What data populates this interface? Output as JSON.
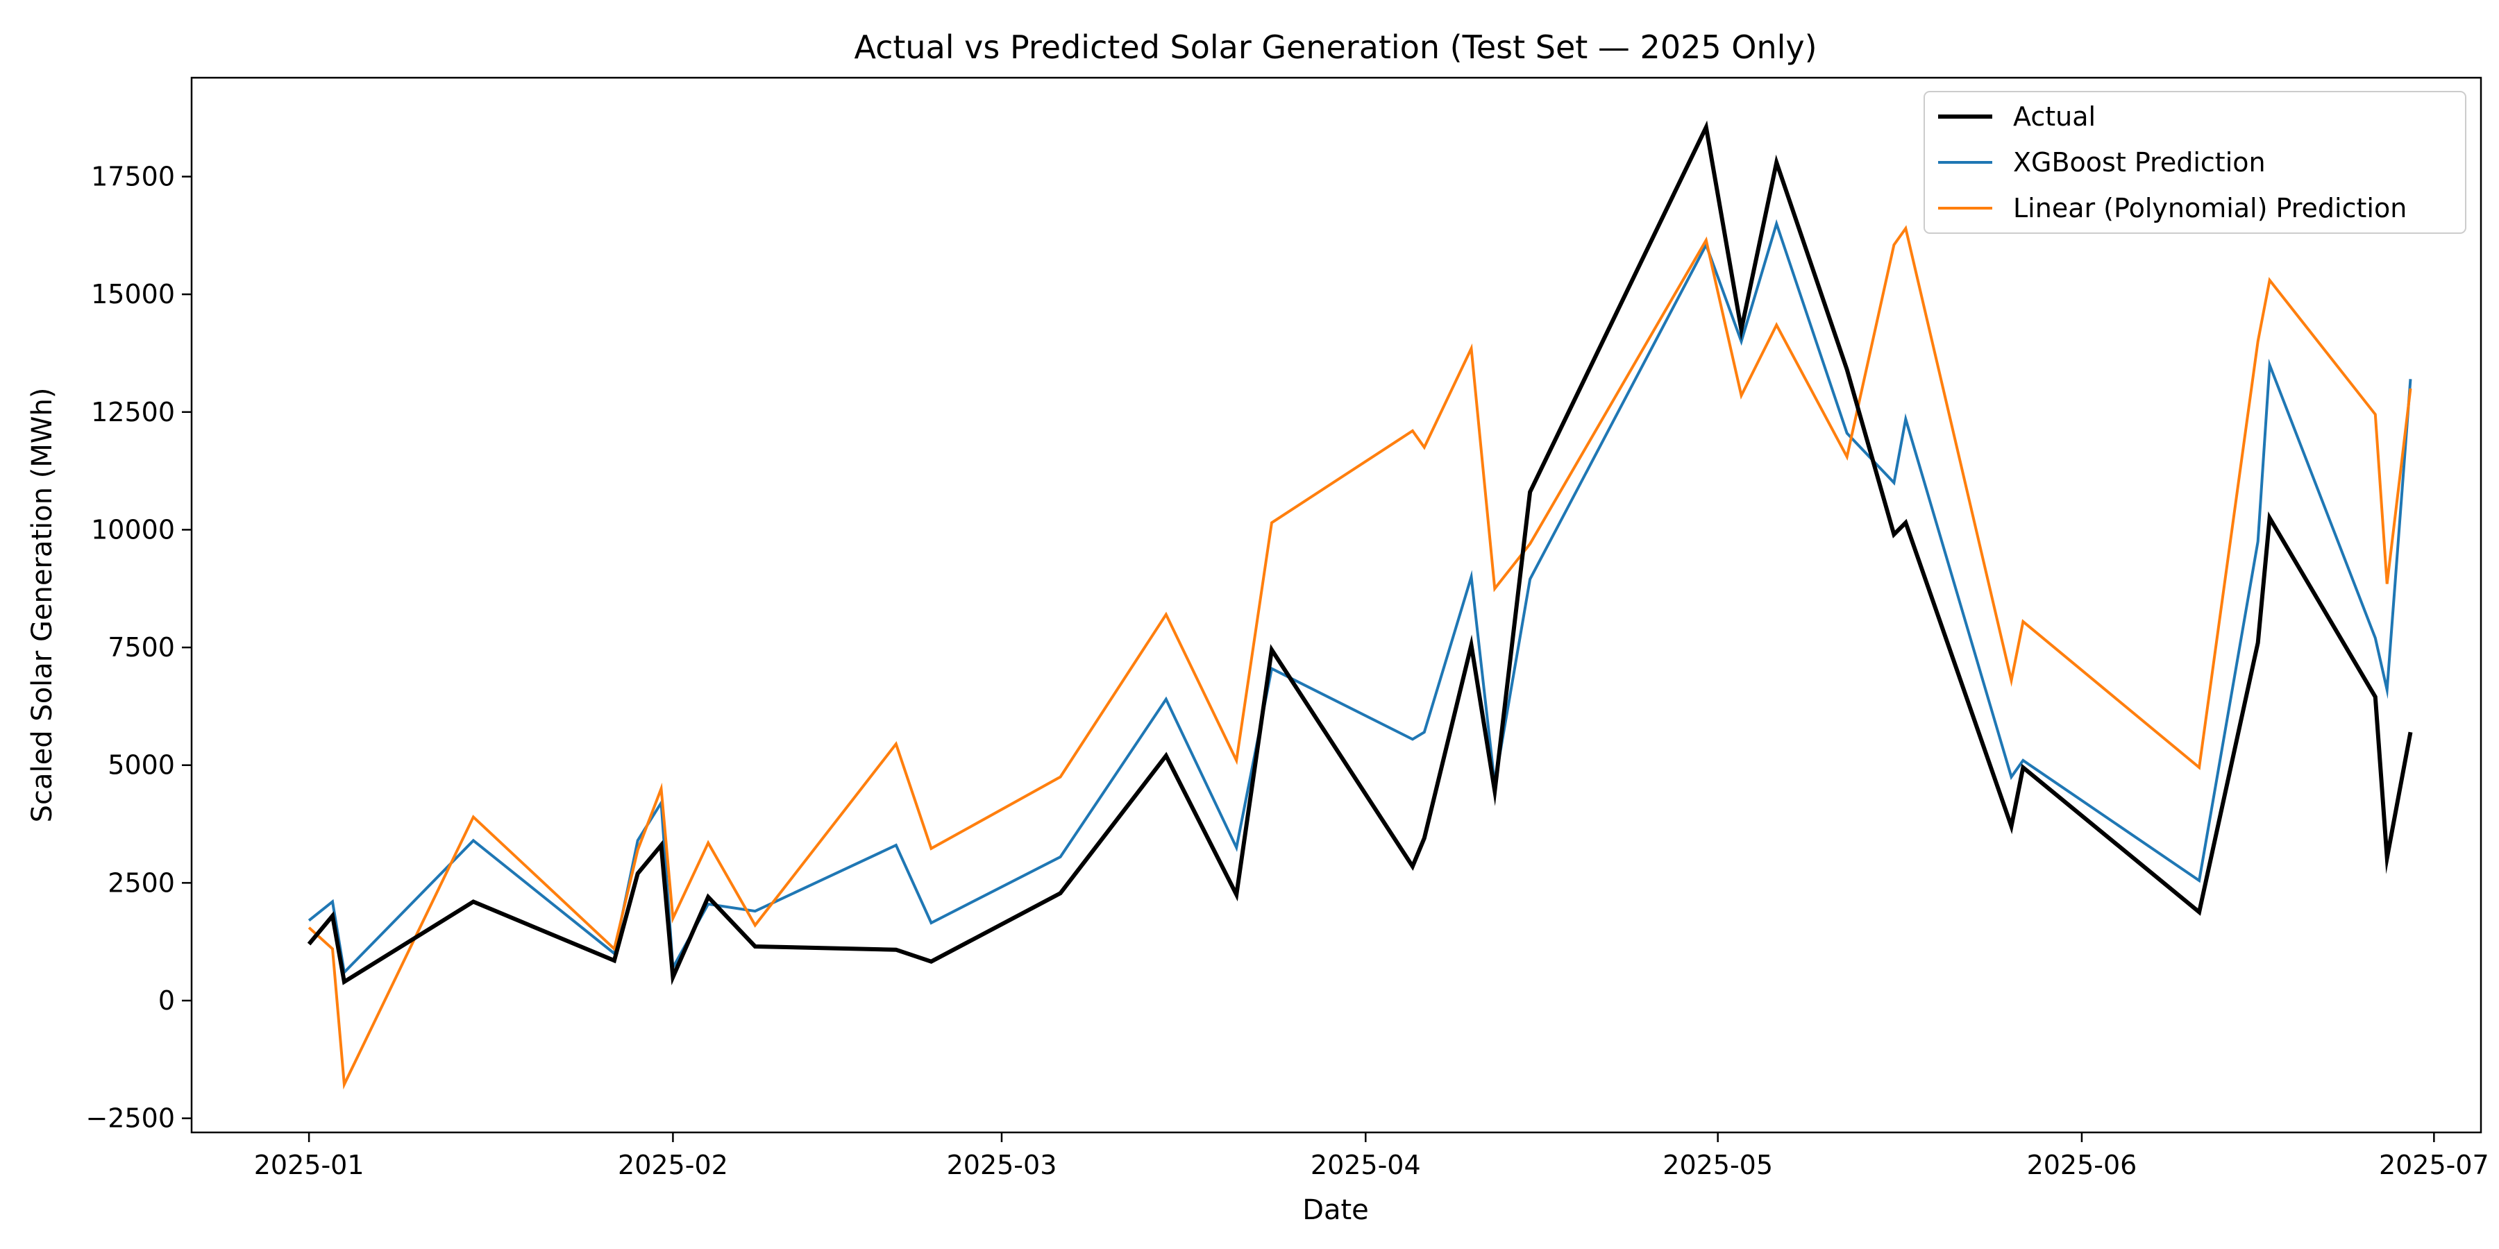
{
  "chart_data": {
    "type": "line",
    "title": "Actual vs Predicted Solar Generation (Test Set — 2025 Only)",
    "xlabel": "Date",
    "ylabel": "Scaled Solar Generation (MWh)",
    "xlim": [
      "2024-12-22",
      "2025-07-05"
    ],
    "ylim": [
      -2800,
      19600
    ],
    "x_ticks": [
      {
        "date": "2025-01-01",
        "label": "2025-01"
      },
      {
        "date": "2025-02-01",
        "label": "2025-02"
      },
      {
        "date": "2025-03-01",
        "label": "2025-03"
      },
      {
        "date": "2025-04-01",
        "label": "2025-04"
      },
      {
        "date": "2025-05-01",
        "label": "2025-05"
      },
      {
        "date": "2025-06-01",
        "label": "2025-06"
      },
      {
        "date": "2025-07-01",
        "label": "2025-07"
      }
    ],
    "y_ticks": [
      -2500,
      0,
      2500,
      5000,
      7500,
      10000,
      12500,
      15000,
      17500
    ],
    "grid": false,
    "legend": "top-right",
    "x": [
      "2025-01-01",
      "2025-01-03",
      "2025-01-04",
      "2025-01-15",
      "2025-01-27",
      "2025-01-29",
      "2025-01-31",
      "2025-02-01",
      "2025-02-04",
      "2025-02-08",
      "2025-02-20",
      "2025-02-23",
      "2025-03-06",
      "2025-03-15",
      "2025-03-21",
      "2025-03-24",
      "2025-04-05",
      "2025-04-06",
      "2025-04-10",
      "2025-04-12",
      "2025-04-15",
      "2025-04-30",
      "2025-05-03",
      "2025-05-06",
      "2025-05-12",
      "2025-05-16",
      "2025-05-17",
      "2025-05-26",
      "2025-05-27",
      "2025-06-11",
      "2025-06-16",
      "2025-06-17",
      "2025-06-26",
      "2025-06-27",
      "2025-06-29"
    ],
    "series": [
      {
        "name": "Actual",
        "color": "#000000",
        "values": [
          1200,
          1800,
          400,
          2100,
          850,
          2700,
          3300,
          500,
          2200,
          1150,
          1080,
          830,
          2280,
          5200,
          2250,
          7450,
          2850,
          3450,
          7550,
          4450,
          10800,
          18550,
          14250,
          17800,
          13400,
          9900,
          10150,
          3700,
          4950,
          1880,
          7600,
          10250,
          6450,
          3030,
          5700
        ]
      },
      {
        "name": "XGBoost Prediction",
        "color": "#1f77b4",
        "values": [
          1700,
          2100,
          600,
          3400,
          1000,
          3400,
          4200,
          700,
          2050,
          1900,
          3300,
          1650,
          3050,
          6400,
          3250,
          7050,
          5550,
          5700,
          9000,
          4600,
          8950,
          16050,
          14000,
          16500,
          12050,
          11000,
          12350,
          4750,
          5100,
          2550,
          9750,
          13500,
          7700,
          6600,
          13200
        ]
      },
      {
        "name": "Linear (Polynomial) Prediction",
        "color": "#ff7f0e",
        "values": [
          1550,
          1100,
          -1780,
          3900,
          1100,
          3200,
          4500,
          1750,
          3350,
          1600,
          5450,
          3230,
          4750,
          8200,
          5100,
          10150,
          12100,
          11750,
          13850,
          8750,
          9700,
          16150,
          12850,
          14350,
          11550,
          16050,
          16400,
          6800,
          8050,
          4950,
          14000,
          15300,
          12450,
          8850,
          13000
        ]
      }
    ]
  }
}
